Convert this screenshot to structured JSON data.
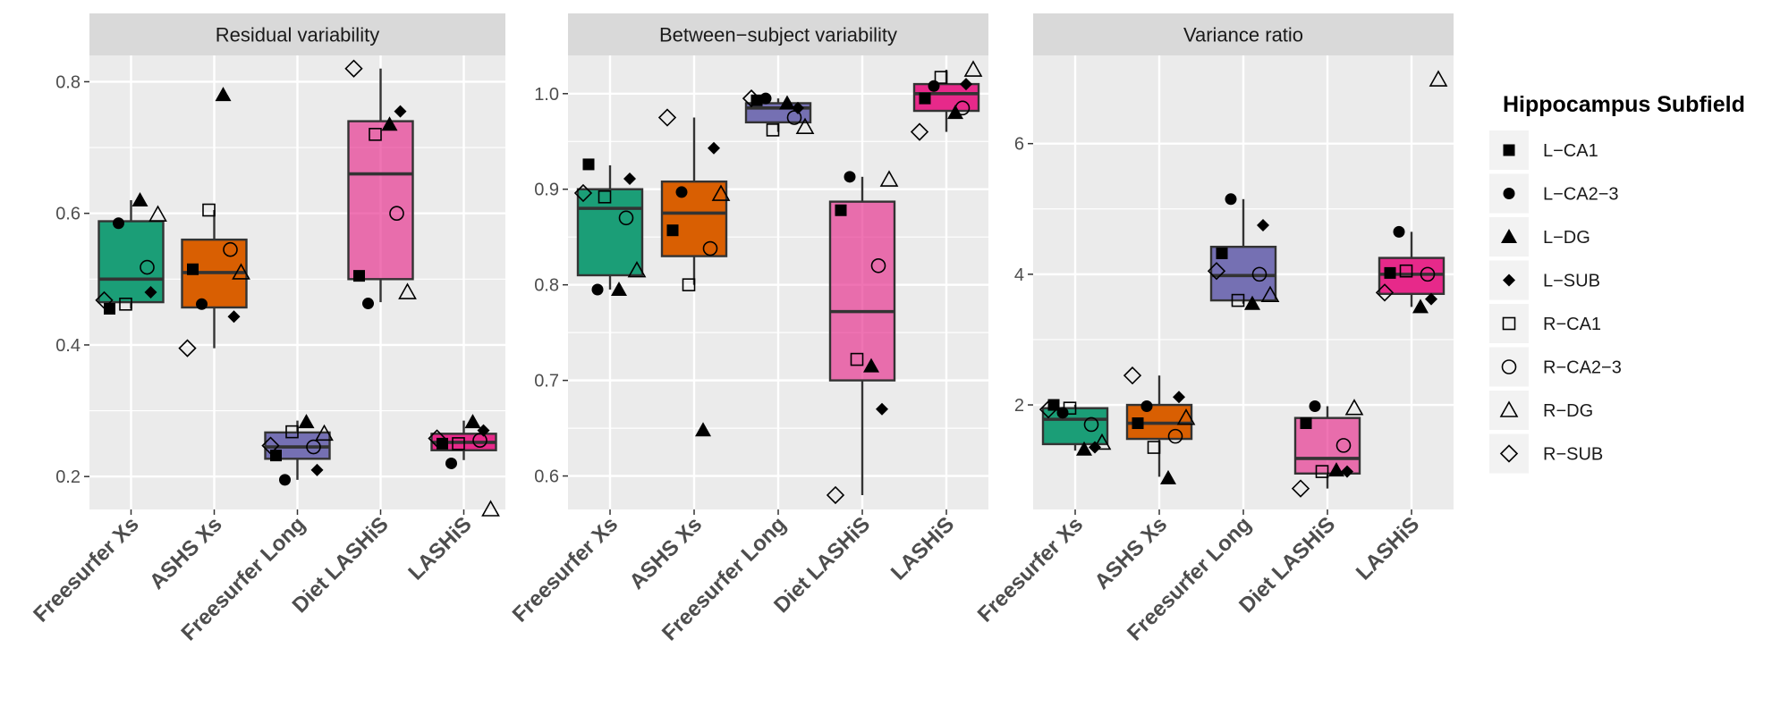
{
  "chart_data": {
    "type": "boxplot",
    "categories": [
      "Freesurfer Xs",
      "ASHS Xs",
      "Freesurfer Long",
      "Diet LASHiS",
      "LASHiS"
    ],
    "category_colors": [
      "#1b9e77",
      "#d95f02",
      "#7570b3",
      "#e7298a",
      "#e7298a"
    ],
    "category_fill_alpha": [
      1,
      1,
      1,
      0.65,
      1
    ],
    "legend": {
      "title": "Hippocampus Subfield",
      "placement": "right",
      "items": [
        {
          "label": "L−CA1",
          "shape": "square-filled"
        },
        {
          "label": "L−CA2−3",
          "shape": "circle-filled"
        },
        {
          "label": "L−DG",
          "shape": "triangle-filled"
        },
        {
          "label": "L−SUB",
          "shape": "diamond-filled"
        },
        {
          "label": "R−CA1",
          "shape": "square-open"
        },
        {
          "label": "R−CA2−3",
          "shape": "circle-open"
        },
        {
          "label": "R−DG",
          "shape": "triangle-open"
        },
        {
          "label": "R−SUB",
          "shape": "diamond-open"
        }
      ]
    },
    "grid": true,
    "facets": [
      {
        "title": "Residual variability",
        "ylim": [
          0.15,
          0.84
        ],
        "y_ticks": [
          0.2,
          0.4,
          0.6,
          0.8
        ],
        "y_tick_labels": [
          "0.2",
          "0.4",
          "0.6",
          "0.8"
        ],
        "boxes": [
          {
            "q1": 0.465,
            "median": 0.5,
            "q3": 0.588,
            "whisker_low": 0.455,
            "whisker_high": 0.62
          },
          {
            "q1": 0.457,
            "median": 0.51,
            "q3": 0.56,
            "whisker_low": 0.395,
            "whisker_high": 0.605
          },
          {
            "q1": 0.227,
            "median": 0.245,
            "q3": 0.267,
            "whisker_low": 0.195,
            "whisker_high": 0.285
          },
          {
            "q1": 0.5,
            "median": 0.66,
            "q3": 0.74,
            "whisker_low": 0.465,
            "whisker_high": 0.82
          },
          {
            "q1": 0.24,
            "median": 0.252,
            "q3": 0.265,
            "whisker_low": 0.225,
            "whisker_high": 0.285
          }
        ],
        "points": [
          [
            {
              "subfield": "L−CA1",
              "value": 0.455
            },
            {
              "subfield": "L−CA2−3",
              "value": 0.585
            },
            {
              "subfield": "L−DG",
              "value": 0.62
            },
            {
              "subfield": "L−SUB",
              "value": 0.48
            },
            {
              "subfield": "R−CA1",
              "value": 0.462
            },
            {
              "subfield": "R−CA2−3",
              "value": 0.518
            },
            {
              "subfield": "R−DG",
              "value": 0.598
            },
            {
              "subfield": "R−SUB",
              "value": 0.468
            }
          ],
          [
            {
              "subfield": "L−CA1",
              "value": 0.515
            },
            {
              "subfield": "L−CA2−3",
              "value": 0.462
            },
            {
              "subfield": "L−DG",
              "value": 0.78
            },
            {
              "subfield": "L−SUB",
              "value": 0.443
            },
            {
              "subfield": "R−CA1",
              "value": 0.605
            },
            {
              "subfield": "R−CA2−3",
              "value": 0.545
            },
            {
              "subfield": "R−DG",
              "value": 0.51
            },
            {
              "subfield": "R−SUB",
              "value": 0.395
            }
          ],
          [
            {
              "subfield": "L−CA1",
              "value": 0.232
            },
            {
              "subfield": "L−CA2−3",
              "value": 0.195
            },
            {
              "subfield": "L−DG",
              "value": 0.283
            },
            {
              "subfield": "L−SUB",
              "value": 0.21
            },
            {
              "subfield": "R−CA1",
              "value": 0.268
            },
            {
              "subfield": "R−CA2−3",
              "value": 0.245
            },
            {
              "subfield": "R−DG",
              "value": 0.265
            },
            {
              "subfield": "R−SUB",
              "value": 0.247
            }
          ],
          [
            {
              "subfield": "L−CA1",
              "value": 0.505
            },
            {
              "subfield": "L−CA2−3",
              "value": 0.463
            },
            {
              "subfield": "L−DG",
              "value": 0.735
            },
            {
              "subfield": "L−SUB",
              "value": 0.755
            },
            {
              "subfield": "R−CA1",
              "value": 0.72
            },
            {
              "subfield": "R−CA2−3",
              "value": 0.6
            },
            {
              "subfield": "R−DG",
              "value": 0.48
            },
            {
              "subfield": "R−SUB",
              "value": 0.82
            }
          ],
          [
            {
              "subfield": "L−CA1",
              "value": 0.25
            },
            {
              "subfield": "L−CA2−3",
              "value": 0.22
            },
            {
              "subfield": "L−DG",
              "value": 0.283
            },
            {
              "subfield": "L−SUB",
              "value": 0.27
            },
            {
              "subfield": "R−CA1",
              "value": 0.25
            },
            {
              "subfield": "R−CA2−3",
              "value": 0.255
            },
            {
              "subfield": "R−DG",
              "value": 0.15
            },
            {
              "subfield": "R−SUB",
              "value": 0.258
            }
          ]
        ]
      },
      {
        "title": "Between−subject variability",
        "ylim": [
          0.565,
          1.04
        ],
        "y_ticks": [
          0.6,
          0.7,
          0.8,
          0.9,
          1.0
        ],
        "y_tick_labels": [
          "0.6",
          "0.7",
          "0.8",
          "0.9",
          "1.0"
        ],
        "boxes": [
          {
            "q1": 0.81,
            "median": 0.88,
            "q3": 0.9,
            "whisker_low": 0.795,
            "whisker_high": 0.925
          },
          {
            "q1": 0.83,
            "median": 0.875,
            "q3": 0.908,
            "whisker_low": 0.8,
            "whisker_high": 0.975
          },
          {
            "q1": 0.97,
            "median": 0.985,
            "q3": 0.99,
            "whisker_low": 0.96,
            "whisker_high": 0.995
          },
          {
            "q1": 0.7,
            "median": 0.772,
            "q3": 0.887,
            "whisker_low": 0.58,
            "whisker_high": 0.913
          },
          {
            "q1": 0.982,
            "median": 1.0,
            "q3": 1.01,
            "whisker_low": 0.96,
            "whisker_high": 1.025
          }
        ],
        "points": [
          [
            {
              "subfield": "L−CA1",
              "value": 0.926
            },
            {
              "subfield": "L−CA2−3",
              "value": 0.795
            },
            {
              "subfield": "L−DG",
              "value": 0.795
            },
            {
              "subfield": "L−SUB",
              "value": 0.911
            },
            {
              "subfield": "R−CA1",
              "value": 0.892
            },
            {
              "subfield": "R−CA2−3",
              "value": 0.87
            },
            {
              "subfield": "R−DG",
              "value": 0.815
            },
            {
              "subfield": "R−SUB",
              "value": 0.896
            }
          ],
          [
            {
              "subfield": "L−CA1",
              "value": 0.857
            },
            {
              "subfield": "L−CA2−3",
              "value": 0.897
            },
            {
              "subfield": "L−DG",
              "value": 0.648
            },
            {
              "subfield": "L−SUB",
              "value": 0.943
            },
            {
              "subfield": "R−CA1",
              "value": 0.8
            },
            {
              "subfield": "R−CA2−3",
              "value": 0.838
            },
            {
              "subfield": "R−DG",
              "value": 0.895
            },
            {
              "subfield": "R−SUB",
              "value": 0.975
            }
          ],
          [
            {
              "subfield": "L−CA1",
              "value": 0.993
            },
            {
              "subfield": "L−CA2−3",
              "value": 0.995
            },
            {
              "subfield": "L−DG",
              "value": 0.99
            },
            {
              "subfield": "L−SUB",
              "value": 0.985
            },
            {
              "subfield": "R−CA1",
              "value": 0.962
            },
            {
              "subfield": "R−CA2−3",
              "value": 0.975
            },
            {
              "subfield": "R−DG",
              "value": 0.965
            },
            {
              "subfield": "R−SUB",
              "value": 0.995
            }
          ],
          [
            {
              "subfield": "L−CA1",
              "value": 0.878
            },
            {
              "subfield": "L−CA2−3",
              "value": 0.913
            },
            {
              "subfield": "L−DG",
              "value": 0.715
            },
            {
              "subfield": "L−SUB",
              "value": 0.67
            },
            {
              "subfield": "R−CA1",
              "value": 0.722
            },
            {
              "subfield": "R−CA2−3",
              "value": 0.82
            },
            {
              "subfield": "R−DG",
              "value": 0.91
            },
            {
              "subfield": "R−SUB",
              "value": 0.58
            }
          ],
          [
            {
              "subfield": "L−CA1",
              "value": 0.995
            },
            {
              "subfield": "L−CA2−3",
              "value": 1.008
            },
            {
              "subfield": "L−DG",
              "value": 0.98
            },
            {
              "subfield": "L−SUB",
              "value": 1.01
            },
            {
              "subfield": "R−CA1",
              "value": 1.017
            },
            {
              "subfield": "R−CA2−3",
              "value": 0.985
            },
            {
              "subfield": "R−DG",
              "value": 1.025
            },
            {
              "subfield": "R−SUB",
              "value": 0.96
            }
          ]
        ]
      },
      {
        "title": "Variance ratio",
        "ylim": [
          0.4,
          7.35
        ],
        "y_ticks": [
          2,
          4,
          6
        ],
        "y_tick_labels": [
          "2",
          "4",
          "6"
        ],
        "boxes": [
          {
            "q1": 1.4,
            "median": 1.78,
            "q3": 1.95,
            "whisker_low": 1.3,
            "whisker_high": 2.0
          },
          {
            "q1": 1.48,
            "median": 1.72,
            "q3": 2.0,
            "whisker_low": 0.9,
            "whisker_high": 2.45
          },
          {
            "q1": 3.6,
            "median": 3.98,
            "q3": 4.42,
            "whisker_low": 3.55,
            "whisker_high": 5.15
          },
          {
            "q1": 0.95,
            "median": 1.18,
            "q3": 1.8,
            "whisker_low": 0.72,
            "whisker_high": 1.98
          },
          {
            "q1": 3.7,
            "median": 4.0,
            "q3": 4.25,
            "whisker_low": 3.5,
            "whisker_high": 4.65
          }
        ],
        "points": [
          [
            {
              "subfield": "L−CA1",
              "value": 2.0
            },
            {
              "subfield": "L−CA2−3",
              "value": 1.88
            },
            {
              "subfield": "L−DG",
              "value": 1.32
            },
            {
              "subfield": "L−SUB",
              "value": 1.35
            },
            {
              "subfield": "R−CA1",
              "value": 1.95
            },
            {
              "subfield": "R−CA2−3",
              "value": 1.7
            },
            {
              "subfield": "R−DG",
              "value": 1.42
            },
            {
              "subfield": "R−SUB",
              "value": 1.93
            }
          ],
          [
            {
              "subfield": "L−CA1",
              "value": 1.72
            },
            {
              "subfield": "L−CA2−3",
              "value": 1.98
            },
            {
              "subfield": "L−DG",
              "value": 0.88
            },
            {
              "subfield": "L−SUB",
              "value": 2.12
            },
            {
              "subfield": "R−CA1",
              "value": 1.35
            },
            {
              "subfield": "R−CA2−3",
              "value": 1.52
            },
            {
              "subfield": "R−DG",
              "value": 1.8
            },
            {
              "subfield": "R−SUB",
              "value": 2.45
            }
          ],
          [
            {
              "subfield": "L−CA1",
              "value": 4.32
            },
            {
              "subfield": "L−CA2−3",
              "value": 5.15
            },
            {
              "subfield": "L−DG",
              "value": 3.55
            },
            {
              "subfield": "L−SUB",
              "value": 4.75
            },
            {
              "subfield": "R−CA1",
              "value": 3.6
            },
            {
              "subfield": "R−CA2−3",
              "value": 4.0
            },
            {
              "subfield": "R−DG",
              "value": 3.68
            },
            {
              "subfield": "R−SUB",
              "value": 4.05
            }
          ],
          [
            {
              "subfield": "L−CA1",
              "value": 1.72
            },
            {
              "subfield": "L−CA2−3",
              "value": 1.98
            },
            {
              "subfield": "L−DG",
              "value": 1.0
            },
            {
              "subfield": "L−SUB",
              "value": 0.98
            },
            {
              "subfield": "R−CA1",
              "value": 0.98
            },
            {
              "subfield": "R−CA2−3",
              "value": 1.38
            },
            {
              "subfield": "R−DG",
              "value": 1.95
            },
            {
              "subfield": "R−SUB",
              "value": 0.72
            }
          ],
          [
            {
              "subfield": "L−CA1",
              "value": 4.02
            },
            {
              "subfield": "L−CA2−3",
              "value": 4.65
            },
            {
              "subfield": "L−DG",
              "value": 3.5
            },
            {
              "subfield": "L−SUB",
              "value": 3.62
            },
            {
              "subfield": "R−CA1",
              "value": 4.05
            },
            {
              "subfield": "R−CA2−3",
              "value": 4.0
            },
            {
              "subfield": "R−DG",
              "value": 6.98
            },
            {
              "subfield": "R−SUB",
              "value": 3.72
            }
          ]
        ]
      }
    ]
  }
}
